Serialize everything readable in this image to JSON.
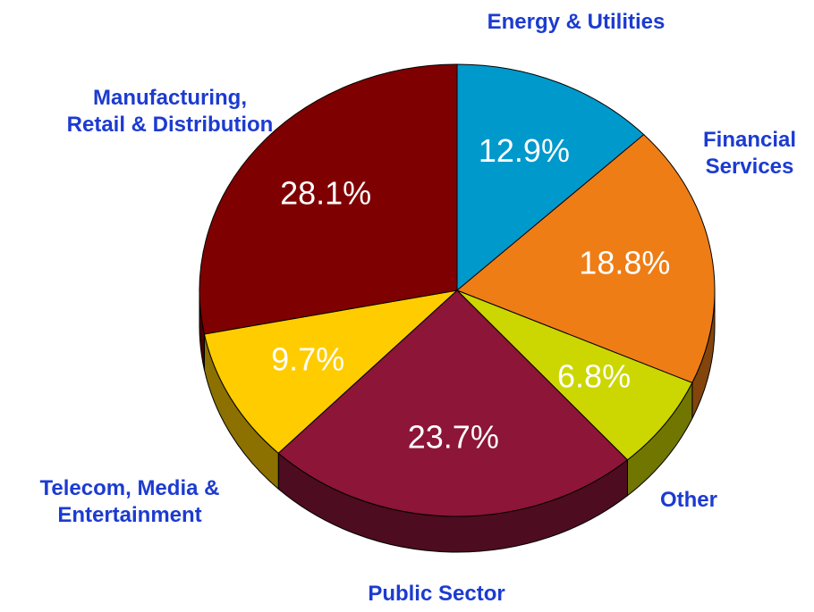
{
  "chart_data": {
    "type": "pie",
    "categories": [
      "Energy & Utilities",
      "Financial Services",
      "Other",
      "Public Sector",
      "Telecom, Media & Entertainment",
      "Manufacturing, Retail & Distribution"
    ],
    "values": [
      12.9,
      18.8,
      6.8,
      23.7,
      9.7,
      28.1
    ],
    "value_labels": [
      "12.9%",
      "18.8%",
      "6.8%",
      "23.7%",
      "9.7%",
      "28.1%"
    ],
    "colors": [
      "#0099cc",
      "#ee7d16",
      "#ccd600",
      "#8c1538",
      "#ffcc00",
      "#7f0000"
    ]
  }
}
